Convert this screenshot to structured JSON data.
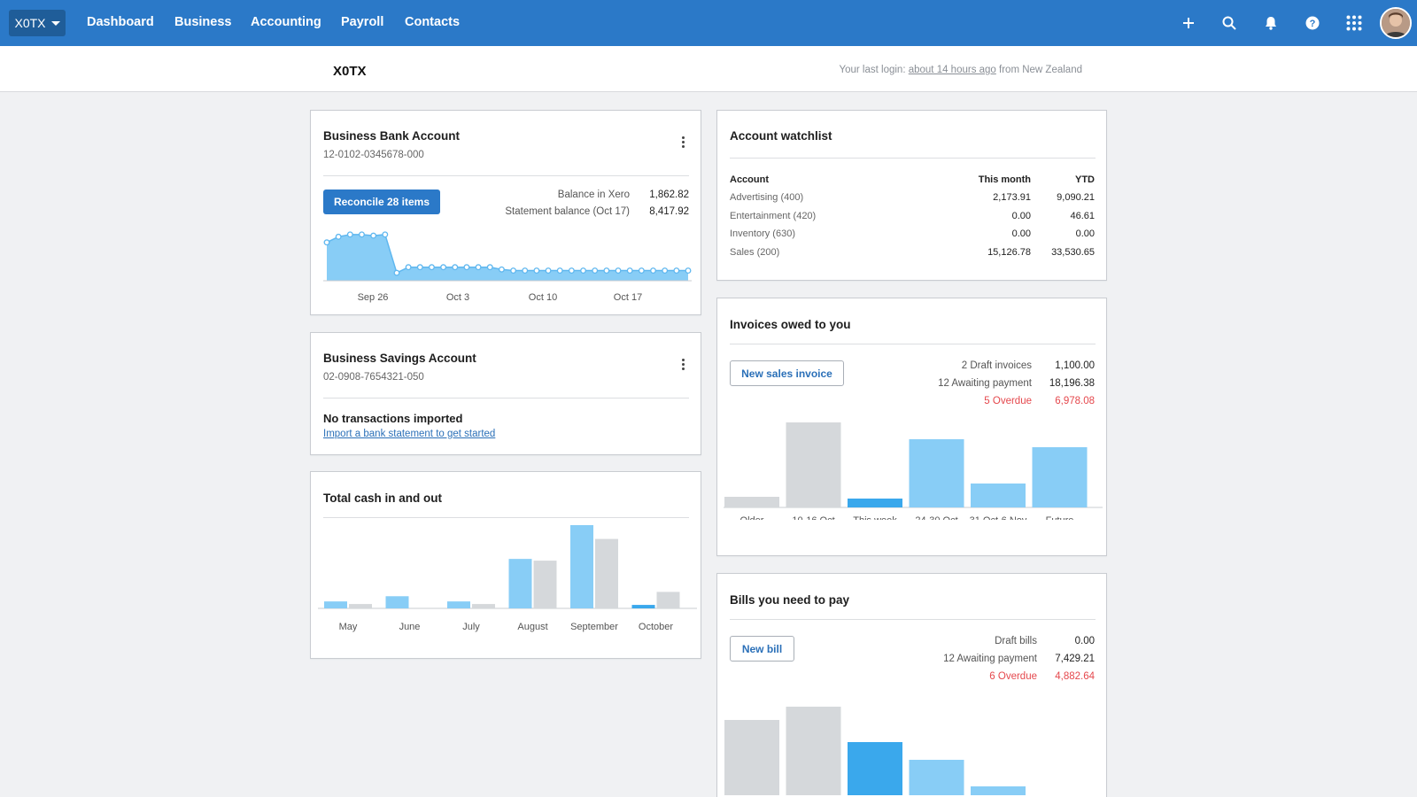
{
  "nav": {
    "org": "X0TX",
    "items": [
      "Dashboard",
      "Business",
      "Accounting",
      "Payroll",
      "Contacts"
    ]
  },
  "header": {
    "org_title": "X0TX",
    "last_login_prefix": "Your last login:",
    "last_login_link": "about 14 hours ago",
    "last_login_suffix": "from New Zealand"
  },
  "bank": {
    "title": "Business Bank Account",
    "number": "12-0102-0345678-000",
    "button": "Reconcile 28 items",
    "balance_label": "Balance in Xero",
    "balance_value": "1,862.82",
    "statement_label": "Statement balance (Oct 17)",
    "statement_value": "8,417.92",
    "chart_labels": [
      "Sep 26",
      "Oct 3",
      "Oct 10",
      "Oct 17"
    ],
    "chart_values": [
      1700,
      1950,
      2050,
      2050,
      2000,
      2050,
      350,
      600,
      600,
      600,
      600,
      600,
      600,
      600,
      600,
      500,
      450,
      450,
      450,
      450,
      450,
      450,
      450,
      450,
      450,
      450,
      450,
      450,
      450,
      450,
      450,
      450
    ]
  },
  "savings": {
    "title": "Business Savings Account",
    "number": "02-0908-7654321-050",
    "empty_title": "No transactions imported",
    "empty_link": "Import a bank statement to get started"
  },
  "cash": {
    "title": "Total cash in and out",
    "months": [
      "May",
      "June",
      "July",
      "August",
      "September",
      "October"
    ],
    "cash_in": [
      8,
      14,
      8,
      57,
      99,
      4
    ],
    "cash_out": [
      5,
      0,
      5,
      55,
      80,
      19
    ]
  },
  "watchlist": {
    "title": "Account watchlist",
    "headers": [
      "Account",
      "This month",
      "YTD"
    ],
    "rows": [
      {
        "account": "Advertising (400)",
        "month": "2,173.91",
        "ytd": "9,090.21"
      },
      {
        "account": "Entertainment (420)",
        "month": "0.00",
        "ytd": "46.61"
      },
      {
        "account": "Inventory (630)",
        "month": "0.00",
        "ytd": "0.00"
      },
      {
        "account": "Sales (200)",
        "month": "15,126.78",
        "ytd": "33,530.65"
      }
    ]
  },
  "invoices": {
    "title": "Invoices owed to you",
    "button": "New sales invoice",
    "rows": [
      {
        "label": "2 Draft invoices",
        "value": "1,100.00"
      },
      {
        "label": "12 Awaiting payment",
        "value": "18,196.38"
      },
      {
        "label": "5 Overdue",
        "value": "6,978.08"
      }
    ],
    "categories": [
      "Older",
      "10-16 Oct",
      "This week",
      "24-30 Oct",
      "31 Oct-6 Nov",
      "Future"
    ],
    "values": [
      12,
      100,
      10,
      77,
      27,
      68
    ]
  },
  "bills": {
    "title": "Bills you need to pay",
    "button": "New bill",
    "rows": [
      {
        "label": "Draft bills",
        "value": "0.00"
      },
      {
        "label": "12 Awaiting payment",
        "value": "7,429.21"
      },
      {
        "label": "6 Overdue",
        "value": "4,882.64"
      }
    ],
    "values": [
      85,
      100,
      60,
      40,
      10
    ]
  },
  "colors": {
    "brand": "#2b79c8",
    "bar_light_blue": "#88cdf6",
    "bar_blue": "#3aa8ec",
    "bar_grey": "#d5d8db",
    "overdue": "#e5484d"
  }
}
